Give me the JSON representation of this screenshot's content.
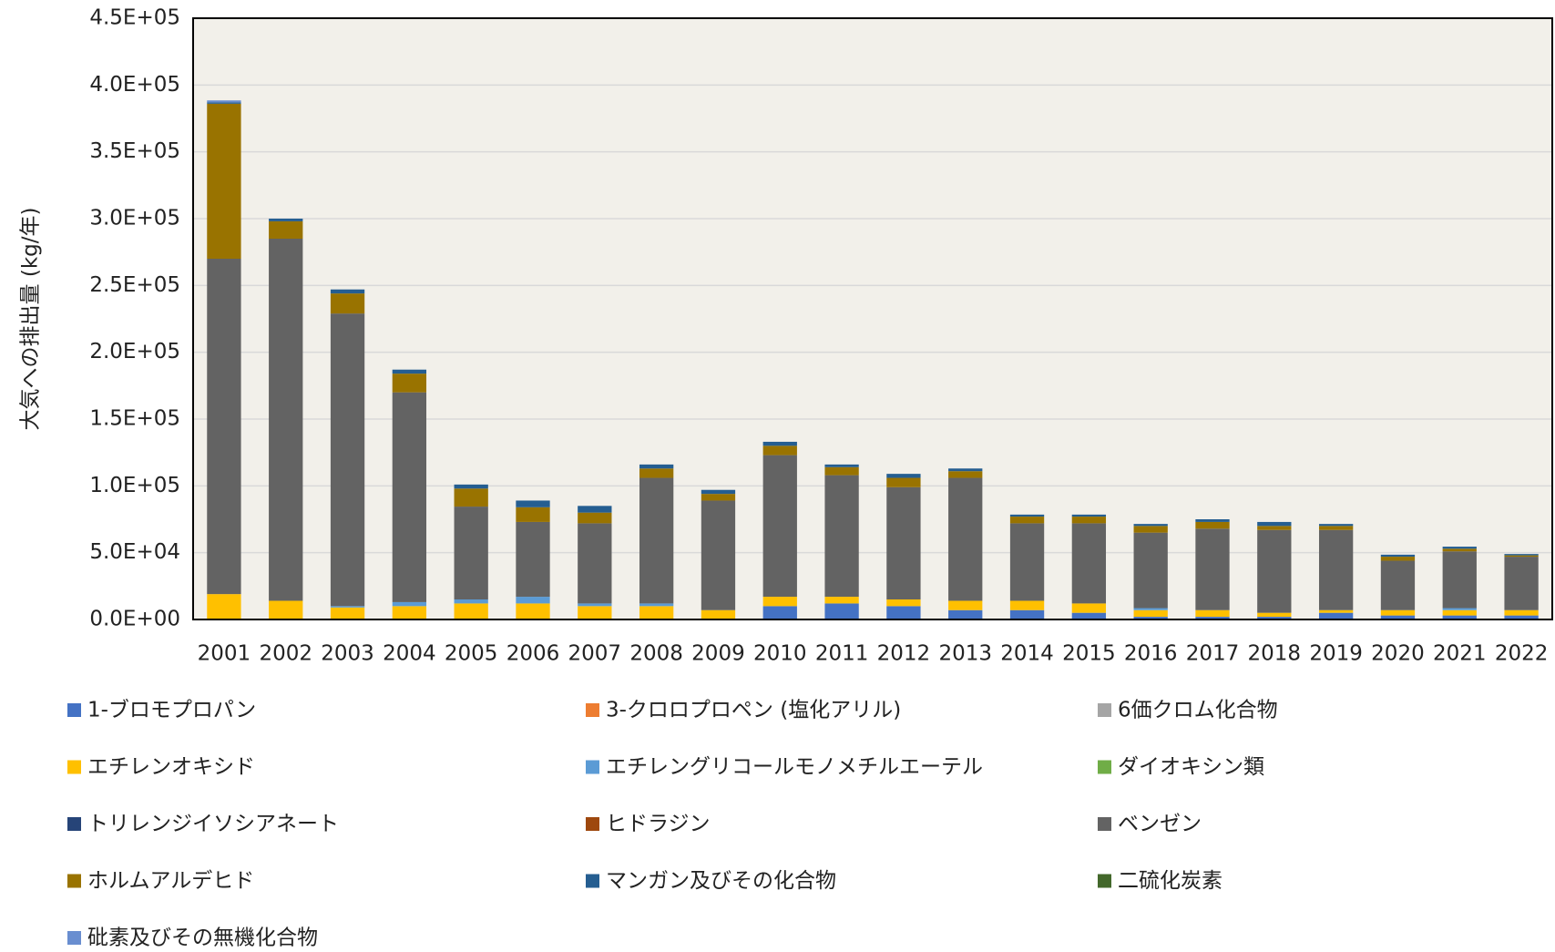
{
  "chart_data": {
    "type": "stacked_bar",
    "y_label": "大気への排出量 (kg/年)",
    "categories": [
      "2001",
      "2002",
      "2003",
      "2004",
      "2005",
      "2006",
      "2007",
      "2008",
      "2009",
      "2010",
      "2011",
      "2012",
      "2013",
      "2014",
      "2015",
      "2016",
      "2017",
      "2018",
      "2019",
      "2020",
      "2021",
      "2022"
    ],
    "ylim": [
      0,
      450000
    ],
    "yticks": [
      {
        "value": 0,
        "label": "0.0E+00"
      },
      {
        "value": 50000,
        "label": "5.0E+04"
      },
      {
        "value": 100000,
        "label": "1.0E+05"
      },
      {
        "value": 150000,
        "label": "1.5E+05"
      },
      {
        "value": 200000,
        "label": "2.0E+05"
      },
      {
        "value": 250000,
        "label": "2.5E+05"
      },
      {
        "value": 300000,
        "label": "3.0E+05"
      },
      {
        "value": 350000,
        "label": "3.5E+05"
      },
      {
        "value": 400000,
        "label": "4.0E+05"
      },
      {
        "value": 450000,
        "label": "4.5E+05"
      }
    ],
    "grid": true,
    "series": [
      {
        "name": "1-ブロモプロパン",
        "color": "#4472c4",
        "values": [
          0,
          0,
          0,
          0,
          0,
          0,
          0,
          0,
          0,
          10000,
          12000,
          10000,
          7000,
          7000,
          5000,
          2000,
          2000,
          2000,
          5000,
          3000,
          3000,
          3000
        ]
      },
      {
        "name": "3-クロロプロペン (塩化アリル)",
        "color": "#ed7d31",
        "values": [
          0,
          0,
          0,
          0,
          0,
          0,
          0,
          0,
          0,
          0,
          0,
          0,
          0,
          0,
          0,
          0,
          0,
          0,
          0,
          0,
          0,
          0
        ]
      },
      {
        "name": "6価クロム化合物",
        "color": "#a5a5a5",
        "values": [
          0,
          0,
          0,
          0,
          0,
          0,
          0,
          0,
          0,
          0,
          0,
          0,
          0,
          0,
          0,
          0,
          0,
          0,
          0,
          0,
          0,
          0
        ]
      },
      {
        "name": "エチレンオキシド",
        "color": "#ffc000",
        "values": [
          19000,
          14000,
          9000,
          10000,
          12000,
          12000,
          10000,
          10000,
          7000,
          7000,
          5000,
          5000,
          7000,
          7000,
          7000,
          5000,
          5000,
          3000,
          2000,
          4000,
          4000,
          4000
        ]
      },
      {
        "name": "エチレングリコールモノメチルエーテル",
        "color": "#5b9bd5",
        "values": [
          0,
          0,
          1000,
          3000,
          3000,
          5000,
          2000,
          2000,
          0,
          0,
          0,
          0,
          0,
          0,
          0,
          1500,
          0,
          0,
          0,
          0,
          1500,
          0
        ]
      },
      {
        "name": "ダイオキシン類",
        "color": "#70ad47",
        "values": [
          0,
          0,
          0,
          0,
          0,
          0,
          0,
          0,
          0,
          0,
          0,
          0,
          0,
          0,
          0,
          0,
          0,
          0,
          0,
          0,
          0,
          0
        ]
      },
      {
        "name": "トリレンジイソシアネート",
        "color": "#264478",
        "values": [
          0,
          0,
          0,
          0,
          0,
          0,
          0,
          0,
          0,
          0,
          0,
          0,
          0,
          0,
          0,
          0,
          0,
          0,
          0,
          0,
          0,
          0
        ]
      },
      {
        "name": "ヒドラジン",
        "color": "#9e480e",
        "values": [
          0,
          0,
          0,
          0,
          0,
          0,
          0,
          0,
          0,
          0,
          0,
          0,
          0,
          0,
          0,
          0,
          0,
          0,
          0,
          0,
          0,
          0
        ]
      },
      {
        "name": "ベンゼン",
        "color": "#636363",
        "values": [
          251000,
          271000,
          219000,
          157000,
          69500,
          56000,
          60000,
          94000,
          82000,
          106000,
          91000,
          84000,
          92000,
          58000,
          60000,
          56500,
          61000,
          62000,
          60000,
          37000,
          42500,
          40000
        ]
      },
      {
        "name": "ホルムアルデヒド",
        "color": "#997300",
        "values": [
          116000,
          13000,
          15000,
          14000,
          13500,
          11000,
          8000,
          7000,
          5000,
          7000,
          6000,
          7000,
          5000,
          5000,
          5000,
          5000,
          5000,
          3000,
          3000,
          3000,
          2000,
          1000
        ]
      },
      {
        "name": "マンガン及びその化合物",
        "color": "#255e91",
        "values": [
          1000,
          2000,
          3000,
          3000,
          3000,
          5000,
          5000,
          3000,
          3000,
          3000,
          2000,
          3000,
          2000,
          1500,
          1500,
          1500,
          2000,
          3000,
          1500,
          1500,
          1500,
          1000
        ]
      },
      {
        "name": "二硫化炭素",
        "color": "#43682b",
        "values": [
          0,
          0,
          0,
          0,
          0,
          0,
          0,
          0,
          0,
          0,
          0,
          0,
          0,
          0,
          0,
          0,
          0,
          0,
          0,
          0,
          0,
          0
        ]
      },
      {
        "name": "砒素及びその無機化合物",
        "color": "#698ed0",
        "values": [
          1500,
          0,
          0,
          0,
          0,
          0,
          0,
          0,
          0,
          0,
          0,
          0,
          0,
          0,
          0,
          0,
          0,
          0,
          0,
          0,
          0,
          0
        ]
      }
    ]
  }
}
